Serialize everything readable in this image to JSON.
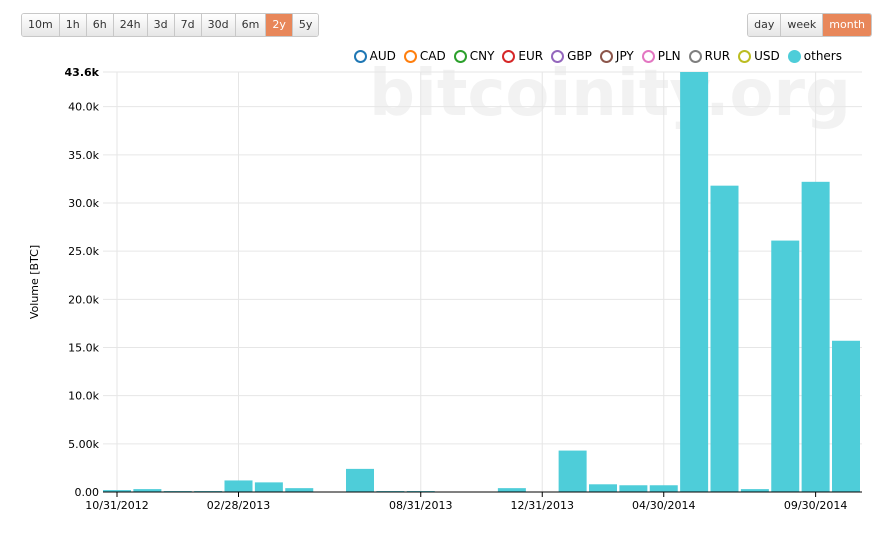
{
  "ui": {
    "range_buttons": [
      "10m",
      "1h",
      "6h",
      "24h",
      "3d",
      "7d",
      "30d",
      "6m",
      "2y",
      "5y"
    ],
    "range_active": 8,
    "period_buttons": [
      "day",
      "week",
      "month"
    ],
    "period_active": 2
  },
  "chart_data": {
    "type": "bar",
    "watermark": "bitcoinity.org",
    "y_label": "Volume [BTC]",
    "categories": [
      "10/31/2012",
      null,
      null,
      null,
      "02/28/2013",
      null,
      null,
      null,
      null,
      null,
      "08/31/2013",
      null,
      null,
      null,
      "12/31/2013",
      null,
      null,
      null,
      "04/30/2014",
      null,
      null,
      null,
      null,
      "09/30/2014",
      null
    ],
    "legend_items": [
      {
        "name": "AUD",
        "color": "#1f77b4"
      },
      {
        "name": "CAD",
        "color": "#ff7f0e"
      },
      {
        "name": "CNY",
        "color": "#2ca02c"
      },
      {
        "name": "EUR",
        "color": "#d62728"
      },
      {
        "name": "GBP",
        "color": "#9467bd"
      },
      {
        "name": "JPY",
        "color": "#8c564b"
      },
      {
        "name": "PLN",
        "color": "#e377c2"
      },
      {
        "name": "RUR",
        "color": "#7f7f7f"
      },
      {
        "name": "USD",
        "color": "#bcbd22"
      }
    ],
    "series": [
      {
        "name": "others",
        "color": "#4ecdd9",
        "values": [
          200,
          300,
          100,
          100,
          1200,
          1000,
          400,
          0,
          2400,
          100,
          100,
          50,
          0,
          400,
          0,
          4300,
          800,
          700,
          700,
          43600,
          31800,
          300,
          26100,
          32200,
          15700
        ]
      }
    ],
    "ylim": [
      0,
      43600
    ],
    "yticks": [
      {
        "value": 0,
        "label": "0.00"
      },
      {
        "value": 5000,
        "label": "5.00k"
      },
      {
        "value": 10000,
        "label": "10.0k"
      },
      {
        "value": 15000,
        "label": "15.0k"
      },
      {
        "value": 20000,
        "label": "20.0k"
      },
      {
        "value": 25000,
        "label": "25.0k"
      },
      {
        "value": 30000,
        "label": "30.0k"
      },
      {
        "value": 35000,
        "label": "35.0k"
      },
      {
        "value": 40000,
        "label": "40.0k"
      },
      {
        "value": 43600,
        "label": "43.6k"
      }
    ],
    "grid": true
  }
}
